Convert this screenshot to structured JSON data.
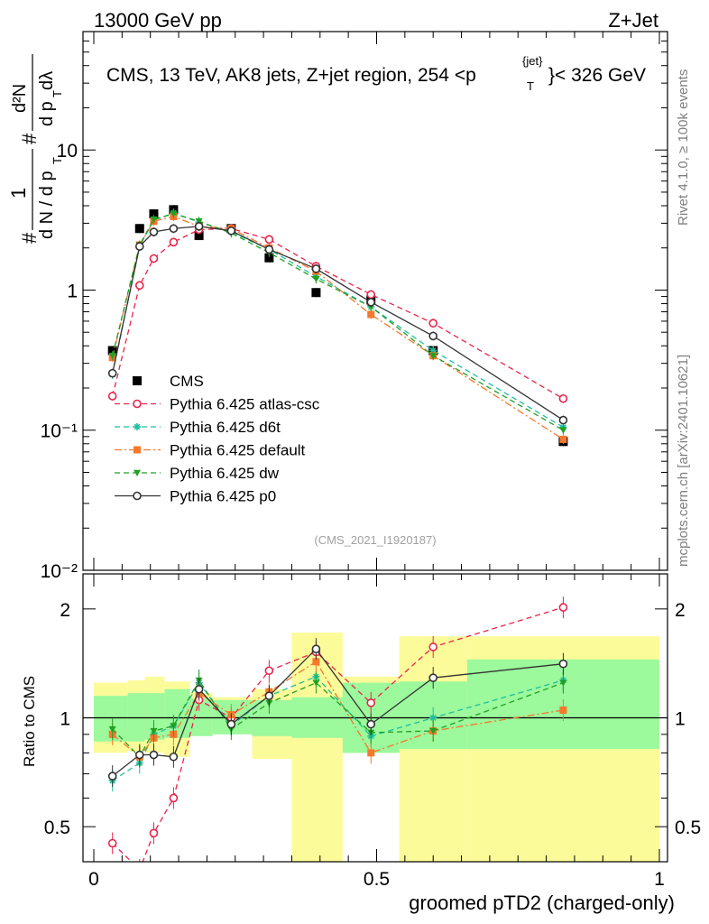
{
  "header": {
    "left": "13000 GeV pp",
    "right": "Z+Jet"
  },
  "title": "CMS, 13 TeV, AK8 jets, Z+jet region, 254 <p {jet} T }< 326 GeV",
  "title_parts": {
    "pre": "CMS, 13 TeV, AK8 jets, Z+jet region, 254 <p",
    "sup": "{jet}",
    "sub": "T",
    "post": "}< 326 GeV"
  },
  "ylabel_top": "1/(dN/dp_T) d²N/(dp_T dλ)",
  "ylabel_parts": {
    "hash": "#",
    "num1": "1",
    "den1": "d N / d p",
    "num2": "d²N",
    "den2": "d p",
    "dl": "dλ",
    "sub": "T"
  },
  "ylabel_ratio": "Ratio to CMS",
  "xlabel": "groomed pTD2 (charged-only)",
  "side_text_top": "Rivet 4.1.0, ≥ 100k events",
  "side_text_bottom": "mcplots.cern.ch [arXiv:2401.10621]",
  "analysis_id": "(CMS_2021_I1920187)",
  "colors": {
    "data": "#000000",
    "atlas_csc": "#e8254b",
    "d6t": "#1fbf9f",
    "default": "#f5782d",
    "dw": "#22a022",
    "p0": "#333333",
    "band_inner": "#9cf99c",
    "band_outer": "#fbfb99"
  },
  "chart_data": {
    "type": "line",
    "x_bins": [
      0.0,
      0.06,
      0.09,
      0.125,
      0.17,
      0.21,
      0.28,
      0.35,
      0.44,
      0.54,
      0.66,
      1.0
    ],
    "x": [
      0.033,
      0.081,
      0.106,
      0.141,
      0.186,
      0.243,
      0.31,
      0.393,
      0.49,
      0.6,
      0.83
    ],
    "main": {
      "ylim": [
        0.01,
        70
      ],
      "yscale": "log",
      "ytick_labels": [
        "10⁻²",
        "10⁻¹",
        "1",
        "10"
      ],
      "series": [
        {
          "name": "CMS",
          "values": [
            0.37,
            2.75,
            3.5,
            3.75,
            2.45,
            2.75,
            1.7,
            0.96,
            0.85,
            0.37,
            0.083
          ]
        },
        {
          "name": "Pythia 6.425 atlas-csc",
          "values": [
            0.175,
            1.08,
            1.68,
            2.2,
            2.7,
            2.75,
            2.3,
            1.48,
            0.93,
            0.58,
            0.168
          ]
        },
        {
          "name": "Pythia 6.425 d6t",
          "values": [
            0.25,
            2.05,
            3.15,
            3.55,
            3.05,
            2.6,
            1.95,
            1.25,
            0.76,
            0.37,
            0.105
          ]
        },
        {
          "name": "Pythia 6.425 default",
          "values": [
            0.33,
            2.1,
            3.1,
            3.35,
            2.85,
            2.75,
            2.0,
            1.36,
            0.67,
            0.34,
            0.086
          ]
        },
        {
          "name": "Pythia 6.425 dw",
          "values": [
            0.34,
            2.1,
            3.2,
            3.5,
            3.1,
            2.55,
            1.85,
            1.2,
            0.76,
            0.34,
            0.1
          ]
        },
        {
          "name": "Pythia 6.425 p0",
          "values": [
            0.255,
            2.05,
            2.6,
            2.75,
            2.85,
            2.65,
            1.95,
            1.42,
            0.82,
            0.47,
            0.118
          ]
        }
      ]
    },
    "ratio": {
      "ylim": [
        0.4,
        2.5
      ],
      "yscale": "log",
      "ytick_labels": [
        "0.5",
        "1",
        "2"
      ],
      "band_inner": [
        [
          0.86,
          1.15
        ],
        [
          0.86,
          1.17
        ],
        [
          0.87,
          1.17
        ],
        [
          0.88,
          1.2
        ],
        [
          0.89,
          1.13
        ],
        [
          0.9,
          1.12
        ],
        [
          0.89,
          1.12
        ],
        [
          0.88,
          1.14
        ],
        [
          0.8,
          1.25
        ],
        [
          0.82,
          1.26
        ],
        [
          0.82,
          1.45
        ]
      ],
      "band_outer": [
        [
          0.8,
          1.25
        ],
        [
          0.81,
          1.27
        ],
        [
          0.8,
          1.3
        ],
        [
          0.78,
          1.26
        ],
        [
          0.9,
          1.17
        ],
        [
          0.92,
          1.14
        ],
        [
          0.77,
          1.2
        ],
        [
          0.4,
          1.72
        ],
        [
          0.8,
          1.3
        ],
        [
          0.4,
          1.68
        ],
        [
          0.4,
          1.68
        ]
      ],
      "series": [
        {
          "name": "Pythia 6.425 atlas-csc",
          "values": [
            0.45,
            0.38,
            0.48,
            0.6,
            1.12,
            1.0,
            1.35,
            1.52,
            1.1,
            1.57,
            2.02
          ]
        },
        {
          "name": "Pythia 6.425 d6t",
          "values": [
            0.67,
            0.75,
            0.9,
            0.95,
            1.25,
            0.95,
            1.15,
            1.3,
            0.89,
            1.0,
            1.27
          ]
        },
        {
          "name": "Pythia 6.425 default",
          "values": [
            0.9,
            0.78,
            0.88,
            0.9,
            1.17,
            1.02,
            1.18,
            1.43,
            0.8,
            0.92,
            1.05
          ]
        },
        {
          "name": "Pythia 6.425 dw",
          "values": [
            0.93,
            0.78,
            0.92,
            0.95,
            1.27,
            0.93,
            1.1,
            1.25,
            0.91,
            0.92,
            1.25
          ]
        },
        {
          "name": "Pythia 6.425 p0",
          "values": [
            0.69,
            0.79,
            0.79,
            0.78,
            1.2,
            0.96,
            1.15,
            1.55,
            0.96,
            1.29,
            1.41
          ]
        }
      ]
    },
    "xlim": [
      0,
      1
    ],
    "xtick_labels": [
      "0",
      "0.5",
      "1"
    ]
  }
}
